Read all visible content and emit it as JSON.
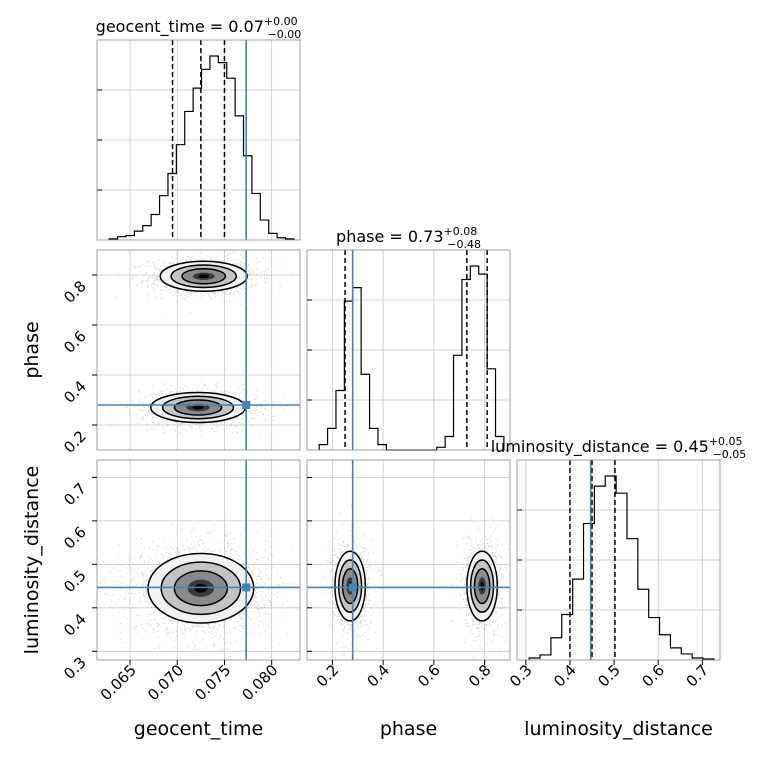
{
  "chart_data": {
    "type": "corner",
    "truth_color": "#4682b4",
    "hist_color": "#000000",
    "parameters": [
      {
        "name": "geocent_time",
        "truth": 0.0773,
        "range": [
          0.0615,
          0.083
        ],
        "ticks": [
          0.065,
          0.07,
          0.075,
          0.08
        ],
        "tick_labels": [
          "0.065",
          "0.070",
          "0.075",
          "0.080"
        ],
        "xlabel": "geocent_time",
        "ylabel": "",
        "quantiles": [
          0.0695,
          0.0725,
          0.075
        ],
        "title_prefix": "geocent_time = 0.07",
        "title_sup": "+0.00",
        "title_sub": "−0.00",
        "hist_counts": [
          1,
          3,
          4,
          8,
          13,
          23,
          40,
          60,
          86,
          116,
          137,
          154,
          166,
          160,
          146,
          112,
          76,
          42,
          18,
          6,
          2,
          1
        ]
      },
      {
        "name": "phase",
        "truth": 0.28,
        "range": [
          0.1,
          0.9
        ],
        "ticks": [
          0.2,
          0.4,
          0.6,
          0.8
        ],
        "tick_labels": [
          "0.2",
          "0.4",
          "0.6",
          "0.8"
        ],
        "xlabel": "phase",
        "ylabel": "phase",
        "quantiles": [
          0.25,
          0.73,
          0.81
        ],
        "title_prefix": "phase = 0.73",
        "title_sup": "+0.08",
        "title_sub": "−0.48",
        "hist_counts": [
          2,
          8,
          22,
          55,
          60,
          28,
          8,
          2,
          0,
          0,
          0,
          0,
          0,
          0,
          1,
          5,
          35,
          63,
          68,
          65,
          30,
          5
        ]
      },
      {
        "name": "luminosity_distance",
        "truth": 0.447,
        "range": [
          0.28,
          0.74
        ],
        "ticks": [
          0.3,
          0.4,
          0.5,
          0.6,
          0.7
        ],
        "tick_labels": [
          "0.3",
          "0.4",
          "0.5",
          "0.6",
          "0.7"
        ],
        "xlabel": "luminosity_distance",
        "ylabel": "luminosity_distance",
        "quantiles": [
          0.4,
          0.45,
          0.502
        ],
        "title_prefix": "luminosity_distance = 0.45",
        "title_sup": "+0.05",
        "title_sub": "−0.05",
        "hist_counts": [
          2,
          5,
          22,
          45,
          80,
          135,
          172,
          182,
          165,
          120,
          70,
          42,
          25,
          12,
          6,
          2,
          1
        ]
      }
    ],
    "pairs": [
      {
        "x": "geocent_time",
        "y": "phase",
        "modes": [
          {
            "cx": 0.0728,
            "cy": 0.795,
            "sx": 0.0023,
            "sy": 0.03,
            "w": 0.5
          },
          {
            "cx": 0.0722,
            "cy": 0.27,
            "sx": 0.0025,
            "sy": 0.03,
            "w": 0.5
          }
        ]
      },
      {
        "x": "geocent_time",
        "y": "luminosity_distance",
        "modes": [
          {
            "cx": 0.0725,
            "cy": 0.445,
            "sx": 0.0028,
            "sy": 0.04,
            "w": 1.0
          }
        ]
      },
      {
        "x": "phase",
        "y": "luminosity_distance",
        "modes": [
          {
            "cx": 0.27,
            "cy": 0.45,
            "sx": 0.03,
            "sy": 0.04,
            "w": 0.5
          },
          {
            "cx": 0.79,
            "cy": 0.45,
            "sx": 0.03,
            "sy": 0.04,
            "w": 0.5
          }
        ]
      }
    ]
  }
}
